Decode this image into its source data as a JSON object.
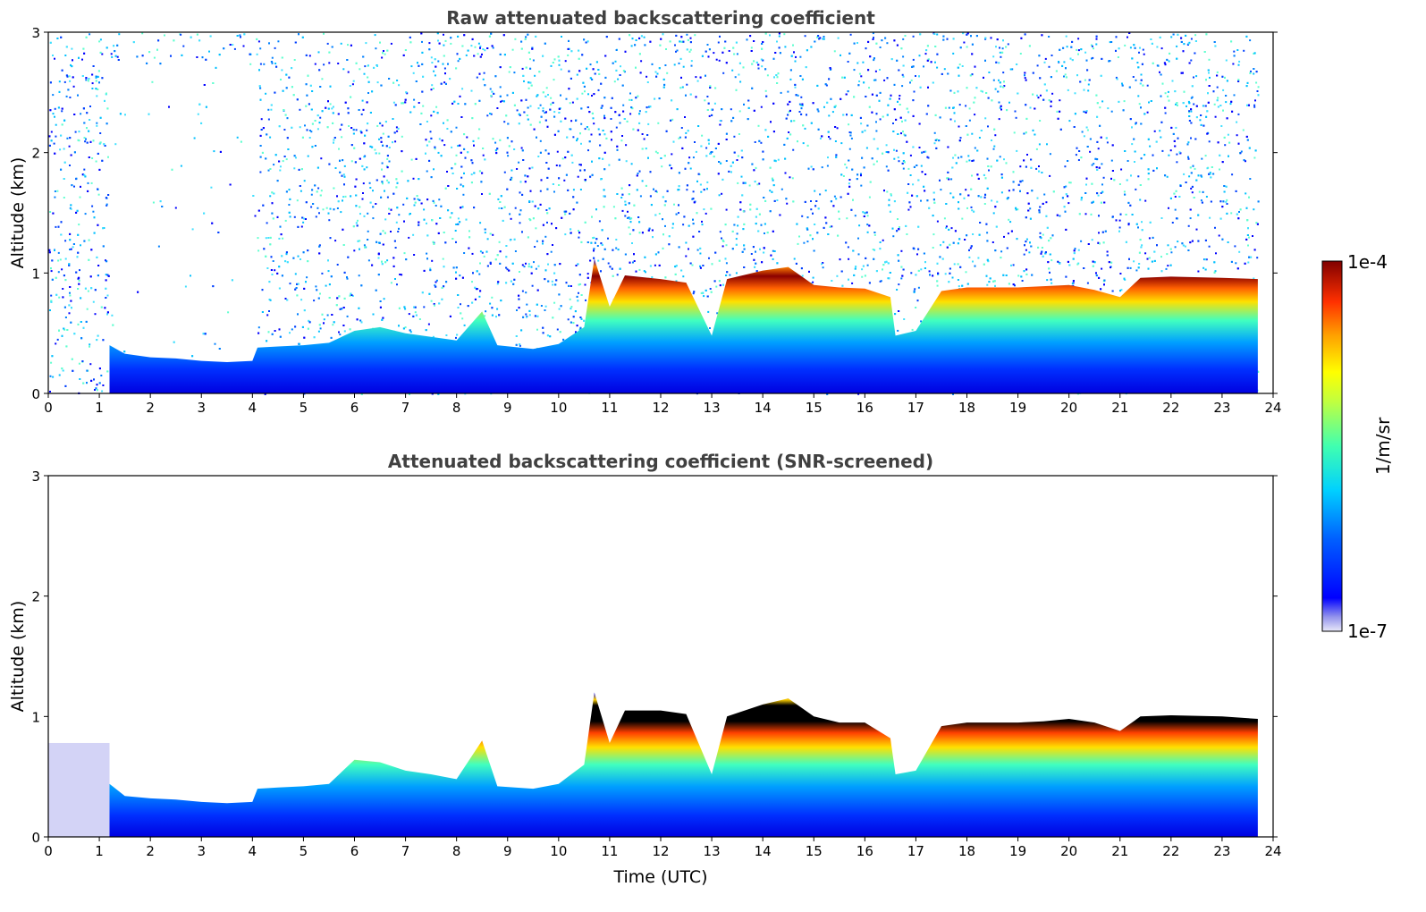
{
  "chart_data": [
    {
      "type": "heatmap",
      "title": "Raw attenuated backscattering coefficient",
      "xlabel": "",
      "ylabel": "Altitude (km)",
      "xlim": [
        0,
        24
      ],
      "ylim": [
        0,
        3
      ],
      "xticks": [
        "0",
        "1",
        "2",
        "3",
        "4",
        "5",
        "6",
        "7",
        "8",
        "9",
        "10",
        "11",
        "12",
        "13",
        "14",
        "15",
        "16",
        "17",
        "18",
        "19",
        "20",
        "21",
        "22",
        "23",
        "24"
      ],
      "yticks": [
        "0",
        "1",
        "2",
        "3"
      ],
      "layer_top_km": [
        [
          1.2,
          0.4
        ],
        [
          1.5,
          0.33
        ],
        [
          2,
          0.3
        ],
        [
          2.5,
          0.29
        ],
        [
          3,
          0.27
        ],
        [
          3.5,
          0.26
        ],
        [
          4,
          0.27
        ],
        [
          4.1,
          0.38
        ],
        [
          4.5,
          0.39
        ],
        [
          5,
          0.4
        ],
        [
          5.5,
          0.42
        ],
        [
          6,
          0.52
        ],
        [
          6.5,
          0.55
        ],
        [
          7,
          0.5
        ],
        [
          7.5,
          0.47
        ],
        [
          8,
          0.44
        ],
        [
          8.5,
          0.68
        ],
        [
          8.8,
          0.4
        ],
        [
          9.5,
          0.37
        ],
        [
          10,
          0.41
        ],
        [
          10.5,
          0.55
        ],
        [
          10.7,
          1.12
        ],
        [
          11,
          0.72
        ],
        [
          11.3,
          0.98
        ],
        [
          12,
          0.95
        ],
        [
          12.5,
          0.92
        ],
        [
          13,
          0.48
        ],
        [
          13.3,
          0.95
        ],
        [
          14,
          1.02
        ],
        [
          14.5,
          1.05
        ],
        [
          15,
          0.9
        ],
        [
          15.5,
          0.88
        ],
        [
          16,
          0.87
        ],
        [
          16.5,
          0.8
        ],
        [
          16.6,
          0.48
        ],
        [
          17,
          0.52
        ],
        [
          17.5,
          0.85
        ],
        [
          18,
          0.88
        ],
        [
          19,
          0.88
        ],
        [
          19.5,
          0.89
        ],
        [
          20,
          0.9
        ],
        [
          20.5,
          0.86
        ],
        [
          21,
          0.8
        ],
        [
          21.4,
          0.96
        ],
        [
          22,
          0.97
        ],
        [
          23,
          0.96
        ],
        [
          23.7,
          0.95
        ]
      ]
    },
    {
      "type": "heatmap",
      "title": "Attenuated backscattering coefficient (SNR-screened)",
      "xlabel": "Time (UTC)",
      "ylabel": "Altitude (km)",
      "xlim": [
        0,
        24
      ],
      "ylim": [
        0,
        3
      ],
      "xticks": [
        "0",
        "1",
        "2",
        "3",
        "4",
        "5",
        "6",
        "7",
        "8",
        "9",
        "10",
        "11",
        "12",
        "13",
        "14",
        "15",
        "16",
        "17",
        "18",
        "19",
        "20",
        "21",
        "22",
        "23",
        "24"
      ],
      "yticks": [
        "0",
        "1",
        "2",
        "3"
      ],
      "layer_top_km": [
        [
          1.2,
          0.44
        ],
        [
          1.5,
          0.34
        ],
        [
          2,
          0.32
        ],
        [
          2.5,
          0.31
        ],
        [
          3,
          0.29
        ],
        [
          3.5,
          0.28
        ],
        [
          4,
          0.29
        ],
        [
          4.1,
          0.4
        ],
        [
          4.5,
          0.41
        ],
        [
          5,
          0.42
        ],
        [
          5.5,
          0.44
        ],
        [
          6,
          0.64
        ],
        [
          6.5,
          0.62
        ],
        [
          7,
          0.55
        ],
        [
          7.5,
          0.52
        ],
        [
          8,
          0.48
        ],
        [
          8.5,
          0.8
        ],
        [
          8.8,
          0.42
        ],
        [
          9.5,
          0.4
        ],
        [
          10,
          0.44
        ],
        [
          10.5,
          0.6
        ],
        [
          10.7,
          1.2
        ],
        [
          11,
          0.78
        ],
        [
          11.3,
          1.05
        ],
        [
          12,
          1.05
        ],
        [
          12.5,
          1.02
        ],
        [
          13,
          0.52
        ],
        [
          13.3,
          1.0
        ],
        [
          14,
          1.1
        ],
        [
          14.5,
          1.15
        ],
        [
          15,
          1.0
        ],
        [
          15.5,
          0.95
        ],
        [
          16,
          0.95
        ],
        [
          16.5,
          0.82
        ],
        [
          16.6,
          0.52
        ],
        [
          17,
          0.55
        ],
        [
          17.5,
          0.92
        ],
        [
          18,
          0.95
        ],
        [
          19,
          0.95
        ],
        [
          19.5,
          0.96
        ],
        [
          20,
          0.98
        ],
        [
          20.5,
          0.95
        ],
        [
          21,
          0.88
        ],
        [
          21.4,
          1.0
        ],
        [
          22,
          1.01
        ],
        [
          23,
          1.0
        ],
        [
          23.7,
          0.98
        ]
      ]
    }
  ],
  "colorbar": {
    "label": "1/m/sr",
    "max_label": "1e-4",
    "min_label": "1e-7",
    "scale": "log",
    "colormap": [
      "#e8e8f8",
      "#c0c0f0",
      "#9090ec",
      "#0000ff",
      "#0060ff",
      "#00c0ff",
      "#40ffc0",
      "#c0ff40",
      "#ffff00",
      "#ffa000",
      "#ff4000",
      "#c00000",
      "#800000"
    ]
  }
}
